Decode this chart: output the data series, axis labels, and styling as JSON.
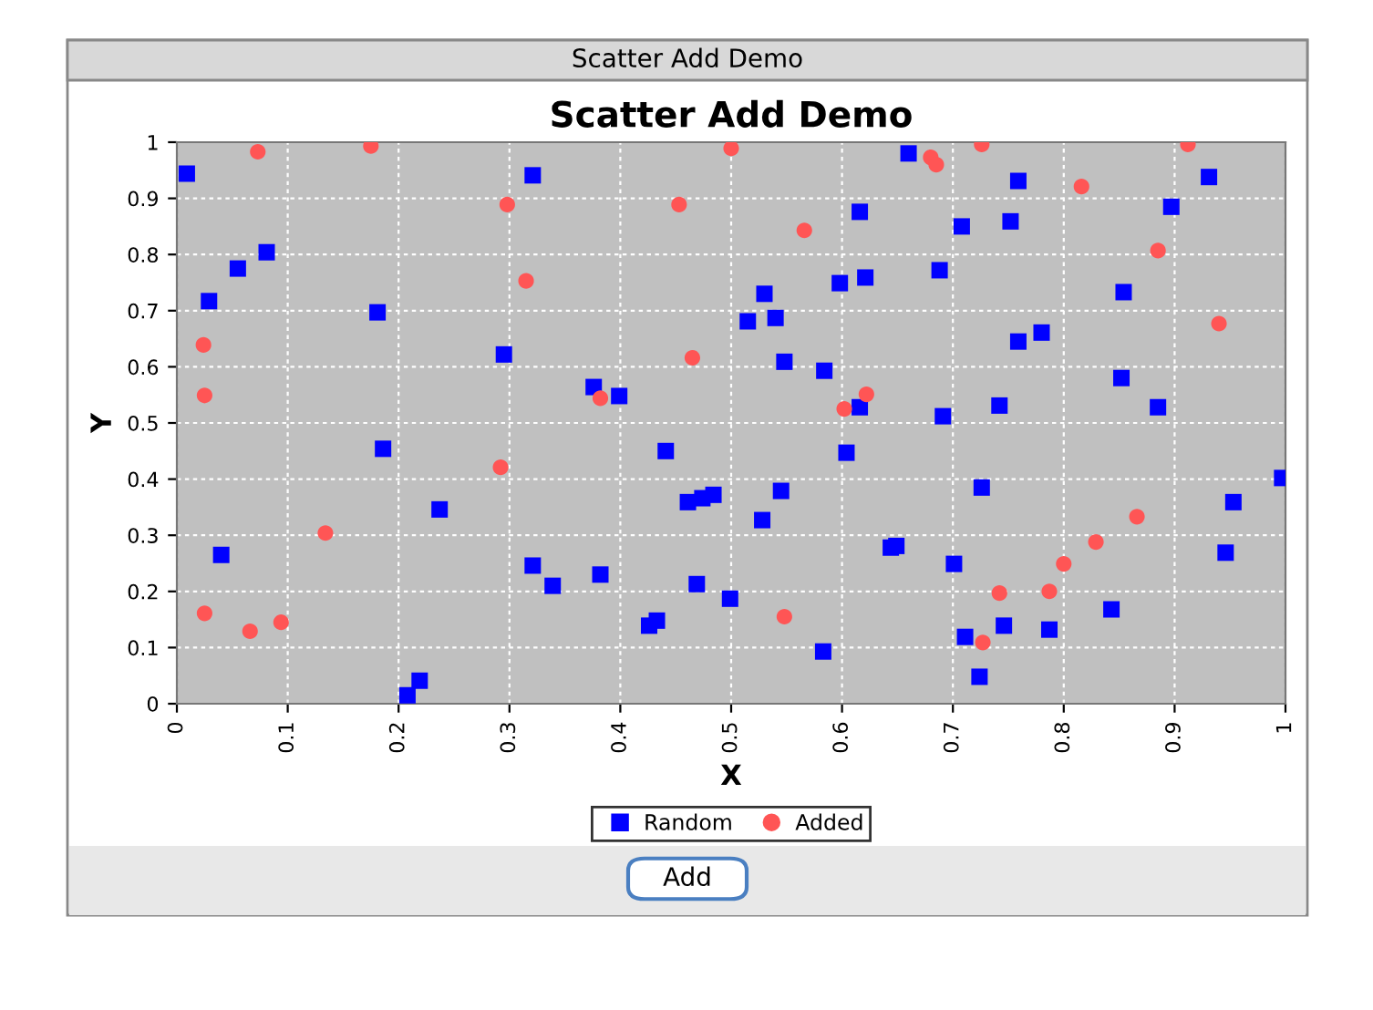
{
  "chart_data": {
    "type": "scatter",
    "title": "Scatter Add Demo",
    "xlabel": "X",
    "ylabel": "Y",
    "annotations": [
      "Scatter Add Demo",
      "Add"
    ],
    "xlim": [
      0,
      1
    ],
    "ylim": [
      0,
      1
    ],
    "xticks": [
      0,
      0.1,
      0.2,
      0.3,
      0.4,
      0.5,
      0.6,
      0.7,
      0.8,
      0.9,
      1
    ],
    "yticks": [
      0,
      0.1,
      0.2,
      0.3,
      0.4,
      0.5,
      0.6,
      0.7,
      0.8,
      0.9,
      1
    ],
    "grid": true,
    "legend": "bottom",
    "series": [
      {
        "name": "Random",
        "color": "#0000ff",
        "marker": "square",
        "x": [
          0.009,
          0.029,
          0.055,
          0.081,
          0.181,
          0.321,
          0.295,
          0.376,
          0.399,
          0.66,
          0.759,
          0.931,
          0.897,
          0.616,
          0.708,
          0.752,
          0.688,
          0.621,
          0.598,
          0.53,
          0.54,
          0.515,
          0.854,
          0.78,
          0.759,
          0.548,
          0.584,
          0.852,
          0.616,
          0.691,
          0.742,
          0.885,
          0.04,
          0.186,
          0.237,
          0.321,
          0.339,
          0.382,
          0.208,
          0.219,
          0.441,
          0.461,
          0.474,
          0.484,
          0.426,
          0.433,
          0.469,
          0.499,
          0.604,
          0.545,
          0.528,
          0.726,
          0.644,
          0.649,
          0.701,
          0.583,
          0.711,
          0.746,
          0.724,
          0.787,
          0.843,
          0.953,
          0.946,
          0.997
        ],
        "values": [
          0.944,
          0.717,
          0.775,
          0.804,
          0.697,
          0.941,
          0.622,
          0.564,
          0.548,
          0.98,
          0.931,
          0.938,
          0.885,
          0.876,
          0.85,
          0.859,
          0.772,
          0.759,
          0.749,
          0.73,
          0.687,
          0.681,
          0.733,
          0.661,
          0.645,
          0.609,
          0.593,
          0.58,
          0.528,
          0.512,
          0.531,
          0.528,
          0.265,
          0.454,
          0.346,
          0.246,
          0.21,
          0.23,
          0.015,
          0.041,
          0.45,
          0.359,
          0.366,
          0.372,
          0.139,
          0.148,
          0.213,
          0.187,
          0.447,
          0.379,
          0.327,
          0.385,
          0.278,
          0.281,
          0.249,
          0.093,
          0.119,
          0.139,
          0.048,
          0.132,
          0.168,
          0.359,
          0.269,
          0.402
        ]
      },
      {
        "name": "Added",
        "color": "#ff5555",
        "marker": "circle",
        "x": [
          0.073,
          0.175,
          0.5,
          0.298,
          0.453,
          0.315,
          0.024,
          0.025,
          0.465,
          0.382,
          0.68,
          0.685,
          0.726,
          0.912,
          0.816,
          0.566,
          0.885,
          0.94,
          0.622,
          0.602,
          0.025,
          0.066,
          0.094,
          0.134,
          0.292,
          0.548,
          0.742,
          0.787,
          0.8,
          0.829,
          0.866,
          0.727
        ],
        "values": [
          0.983,
          0.993,
          0.989,
          0.889,
          0.889,
          0.753,
          0.639,
          0.549,
          0.616,
          0.544,
          0.973,
          0.96,
          0.996,
          0.996,
          0.921,
          0.843,
          0.807,
          0.677,
          0.551,
          0.525,
          0.161,
          0.129,
          0.145,
          0.304,
          0.421,
          0.155,
          0.197,
          0.2,
          0.249,
          0.288,
          0.333,
          0.109
        ]
      }
    ]
  }
}
